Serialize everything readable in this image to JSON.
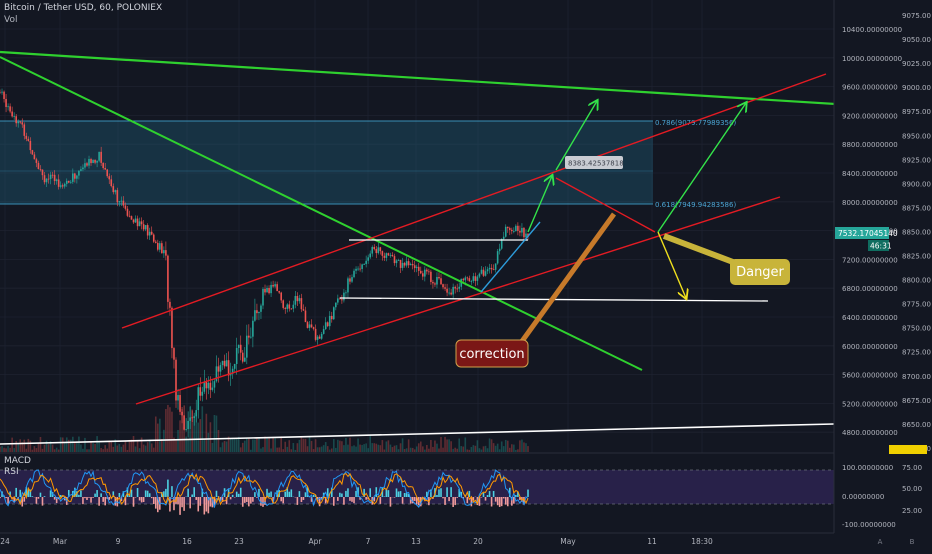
{
  "header": {
    "symbol_line": "Bitcoin / Tether USD, 60, POLONIEX",
    "volume_label": "Vol"
  },
  "indicators": {
    "macd_label": "MACD",
    "rsi_label": "RSI"
  },
  "colors": {
    "background": "#131722",
    "grid": "#1e2230",
    "candle_up": "#26a69a",
    "candle_down": "#ef5350",
    "trend_green": "#2fd12f",
    "channel_red": "#e31b23",
    "support_white": "#ffffff",
    "fib_zone": "#1f5f7a",
    "arrow_green": "#33e34a",
    "arrow_yellow": "#f0e01e",
    "callout_danger_bg": "#c8b43a",
    "callout_correction_bg": "#7b1716",
    "macd_fill": "#3a2a6a",
    "price_tag": "#26a69a"
  },
  "annotations": {
    "fib_786": "0.786(9079.77989356)",
    "fib_618": "0.618(7949.94283586)",
    "target_label": "8383.42537818",
    "danger": "Danger",
    "correction": "correction"
  },
  "left_axis_ticks": [
    "10400.00000000",
    "10000.00000000",
    "9600.00000000",
    "9200.00000000",
    "8800.00000000",
    "8400.00000000",
    "8000.00000000",
    "7600.00000000",
    "7200.00000000",
    "6800.00000000",
    "6400.00000000",
    "6000.00000000",
    "5600.00000000",
    "5200.00000000",
    "4800.00000000"
  ],
  "right_axis_ticks": [
    "9075.00",
    "9050.00",
    "9025.00",
    "9000.00",
    "8975.00",
    "8950.00",
    "8925.00",
    "8900.00",
    "8875.00",
    "8850.00",
    "8825.00",
    "8800.00",
    "8775.00",
    "8750.00",
    "8725.00",
    "8700.00",
    "8675.00",
    "8650.00",
    "8625.00"
  ],
  "current_price": {
    "value": "7532.17045140",
    "countdown": "46:31"
  },
  "indicator_axis_left": [
    "100.00000000",
    "0.00000000",
    "-100.00000000"
  ],
  "indicator_axis_right": [
    "75.00",
    "50.00",
    "25.00"
  ],
  "x_axis_ticks": [
    "24",
    "Mar",
    "9",
    "16",
    "23",
    "Apr",
    "7",
    "13",
    "20",
    "May",
    "11",
    "18:30"
  ],
  "axis_buttons": [
    "A",
    "B"
  ],
  "chart_data": {
    "type": "candlestick",
    "title": "Bitcoin / Tether USD, 60, POLONIEX",
    "price_range": [
      4500,
      10600
    ],
    "price_path": [
      [
        0,
        9600
      ],
      [
        2,
        9100
      ],
      [
        4,
        8400
      ],
      [
        6,
        8300
      ],
      [
        8,
        8600
      ],
      [
        9,
        8700
      ],
      [
        11,
        8000
      ],
      [
        13,
        7700
      ],
      [
        15,
        7300
      ],
      [
        16,
        5400
      ],
      [
        17,
        4800
      ],
      [
        18,
        5300
      ],
      [
        20,
        5600
      ],
      [
        22,
        5900
      ],
      [
        24,
        6700
      ],
      [
        25,
        6900
      ],
      [
        26,
        6500
      ],
      [
        27,
        6700
      ],
      [
        28,
        6300
      ],
      [
        29,
        6100
      ],
      [
        31,
        6700
      ],
      [
        32,
        7000
      ],
      [
        33,
        7200
      ],
      [
        34,
        7400
      ],
      [
        36,
        7200
      ],
      [
        38,
        7100
      ],
      [
        40,
        6900
      ],
      [
        41,
        6800
      ],
      [
        42,
        6900
      ],
      [
        44,
        7050
      ],
      [
        45,
        7150
      ],
      [
        46,
        7700
      ],
      [
        47,
        7660
      ],
      [
        48,
        7600
      ]
    ],
    "notes": "hourly candles with volume, MACD and RSI panes"
  }
}
